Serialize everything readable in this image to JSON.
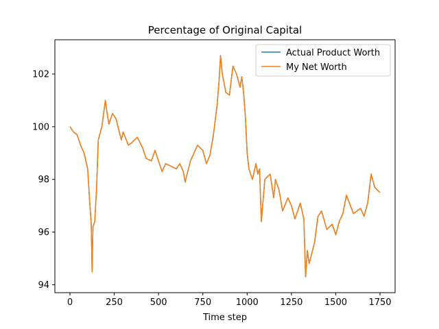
{
  "chart_data": {
    "type": "line",
    "title": "Percentage of Original Capital",
    "xlabel": "Time step",
    "ylabel": "",
    "xlim": [
      -85,
      1835
    ],
    "ylim": [
      93.7,
      103.3
    ],
    "xticks": [
      0,
      250,
      500,
      750,
      1000,
      1250,
      1500,
      1750
    ],
    "yticks": [
      94,
      96,
      98,
      100,
      102
    ],
    "grid": false,
    "legend_position": "top-right",
    "series": [
      {
        "name": "Actual Product Worth",
        "color": "#1f77b4",
        "x": [
          0,
          20,
          40,
          60,
          80,
          100,
          110,
          120,
          125,
          130,
          140,
          150,
          160,
          180,
          200,
          210,
          220,
          240,
          260,
          290,
          300,
          330,
          350,
          380,
          410,
          430,
          460,
          480,
          500,
          520,
          540,
          570,
          600,
          620,
          640,
          650,
          680,
          700,
          720,
          750,
          770,
          790,
          810,
          830,
          840,
          850,
          860,
          880,
          900,
          920,
          940,
          960,
          970,
          980,
          990,
          1000,
          1010,
          1030,
          1050,
          1060,
          1070,
          1080,
          1100,
          1130,
          1150,
          1160,
          1180,
          1200,
          1230,
          1250,
          1270,
          1300,
          1320,
          1330,
          1340,
          1350,
          1380,
          1400,
          1420,
          1450,
          1480,
          1500,
          1520,
          1540,
          1560,
          1600,
          1640,
          1660,
          1680,
          1700,
          1720,
          1750
        ],
        "values": [
          100.0,
          99.8,
          99.7,
          99.3,
          99.0,
          98.4,
          97.3,
          96.3,
          94.5,
          96.2,
          96.4,
          97.6,
          99.5,
          100.0,
          101.0,
          100.5,
          100.1,
          100.5,
          100.3,
          99.5,
          99.8,
          99.3,
          99.4,
          99.6,
          99.2,
          98.8,
          98.7,
          99.1,
          98.7,
          98.3,
          98.6,
          98.5,
          98.4,
          98.6,
          98.3,
          97.9,
          98.7,
          99.0,
          99.3,
          99.1,
          98.6,
          98.9,
          99.7,
          100.8,
          101.6,
          102.7,
          102.0,
          101.3,
          101.2,
          102.3,
          102.0,
          101.5,
          101.9,
          101.3,
          100.4,
          99.0,
          98.4,
          98.0,
          98.6,
          98.2,
          98.4,
          96.4,
          98.0,
          98.2,
          97.3,
          98.0,
          97.6,
          96.8,
          97.3,
          97.0,
          96.5,
          97.1,
          96.5,
          94.3,
          95.3,
          94.8,
          95.6,
          96.6,
          96.8,
          96.1,
          96.3,
          95.9,
          96.4,
          96.7,
          97.4,
          96.7,
          96.9,
          96.6,
          97.1,
          98.2,
          97.7,
          97.5
        ]
      },
      {
        "name": "My Net Worth",
        "color": "#ff7f0e",
        "x": [
          0,
          20,
          40,
          60,
          80,
          100,
          110,
          120,
          125,
          130,
          140,
          150,
          160,
          180,
          200,
          210,
          220,
          240,
          260,
          290,
          300,
          330,
          350,
          380,
          410,
          430,
          460,
          480,
          500,
          520,
          540,
          570,
          600,
          620,
          640,
          650,
          680,
          700,
          720,
          750,
          770,
          790,
          810,
          830,
          840,
          850,
          860,
          880,
          900,
          920,
          940,
          960,
          970,
          980,
          990,
          1000,
          1010,
          1030,
          1050,
          1060,
          1070,
          1080,
          1100,
          1130,
          1150,
          1160,
          1180,
          1200,
          1230,
          1250,
          1270,
          1300,
          1320,
          1330,
          1340,
          1350,
          1380,
          1400,
          1420,
          1450,
          1480,
          1500,
          1520,
          1540,
          1560,
          1600,
          1640,
          1660,
          1680,
          1700,
          1720,
          1750
        ],
        "values": [
          100.0,
          99.8,
          99.7,
          99.3,
          99.0,
          98.4,
          97.3,
          96.3,
          94.5,
          96.2,
          96.4,
          97.6,
          99.5,
          100.0,
          101.0,
          100.5,
          100.1,
          100.5,
          100.3,
          99.5,
          99.8,
          99.3,
          99.4,
          99.6,
          99.2,
          98.8,
          98.7,
          99.1,
          98.7,
          98.3,
          98.6,
          98.5,
          98.4,
          98.6,
          98.3,
          97.9,
          98.7,
          99.0,
          99.3,
          99.1,
          98.6,
          98.9,
          99.7,
          100.8,
          101.6,
          102.7,
          102.0,
          101.3,
          101.2,
          102.3,
          102.0,
          101.5,
          101.9,
          101.3,
          100.4,
          99.0,
          98.4,
          98.0,
          98.6,
          98.2,
          98.4,
          96.4,
          98.0,
          98.2,
          97.3,
          98.0,
          97.6,
          96.8,
          97.3,
          97.0,
          96.5,
          97.1,
          96.5,
          94.3,
          95.3,
          94.8,
          95.6,
          96.6,
          96.8,
          96.1,
          96.3,
          95.9,
          96.4,
          96.7,
          97.4,
          96.7,
          96.9,
          96.6,
          97.1,
          98.2,
          97.7,
          97.5
        ]
      }
    ]
  }
}
